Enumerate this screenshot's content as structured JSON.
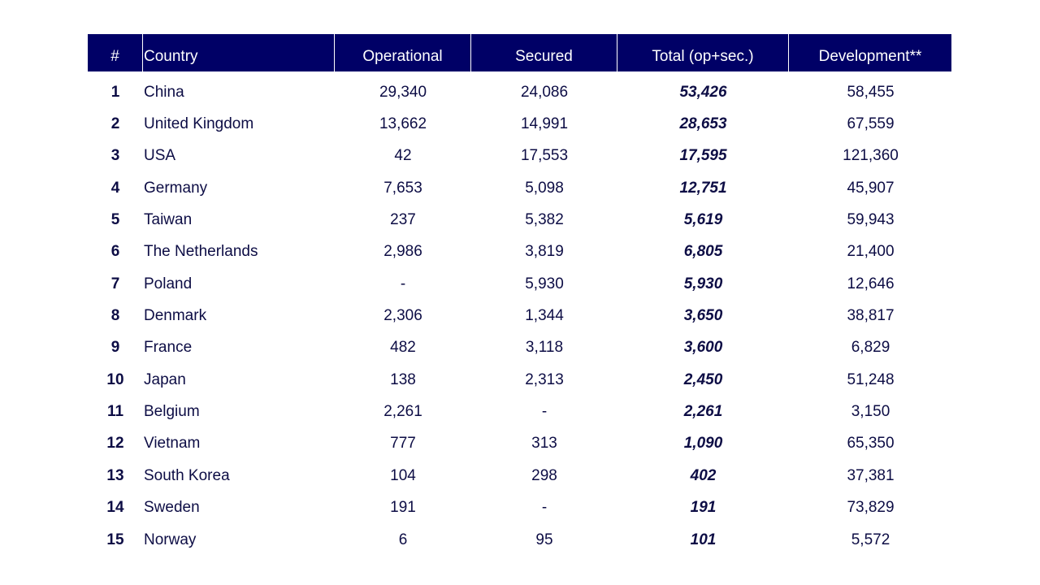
{
  "table": {
    "header": [
      "#",
      "Country",
      "Operational",
      "Secured",
      "Total (op+sec.)",
      "Development**"
    ],
    "rows": [
      [
        "1",
        "China",
        "29,340",
        "24,086",
        "53,426",
        "58,455"
      ],
      [
        "2",
        "United Kingdom",
        "13,662",
        "14,991",
        "28,653",
        "67,559"
      ],
      [
        "3",
        "USA",
        "42",
        "17,553",
        "17,595",
        "121,360"
      ],
      [
        "4",
        "Germany",
        "7,653",
        "5,098",
        "12,751",
        "45,907"
      ],
      [
        "5",
        "Taiwan",
        "237",
        "5,382",
        "5,619",
        "59,943"
      ],
      [
        "6",
        "The Netherlands",
        "2,986",
        "3,819",
        "6,805",
        "21,400"
      ],
      [
        "7",
        "Poland",
        "-",
        "5,930",
        "5,930",
        "12,646"
      ],
      [
        "8",
        "Denmark",
        "2,306",
        "1,344",
        "3,650",
        "38,817"
      ],
      [
        "9",
        "France",
        "482",
        "3,118",
        "3,600",
        "6,829"
      ],
      [
        "10",
        "Japan",
        "138",
        "2,313",
        "2,450",
        "51,248"
      ],
      [
        "11",
        "Belgium",
        "2,261",
        "-",
        "2,261",
        "3,150"
      ],
      [
        "12",
        "Vietnam",
        "777",
        "313",
        "1,090",
        "65,350"
      ],
      [
        "13",
        "South Korea",
        "104",
        "298",
        "402",
        "37,381"
      ],
      [
        "14",
        "Sweden",
        "191",
        "-",
        "191",
        "73,829"
      ],
      [
        "15",
        "Norway",
        "6",
        "95",
        "101",
        "5,572"
      ]
    ]
  }
}
